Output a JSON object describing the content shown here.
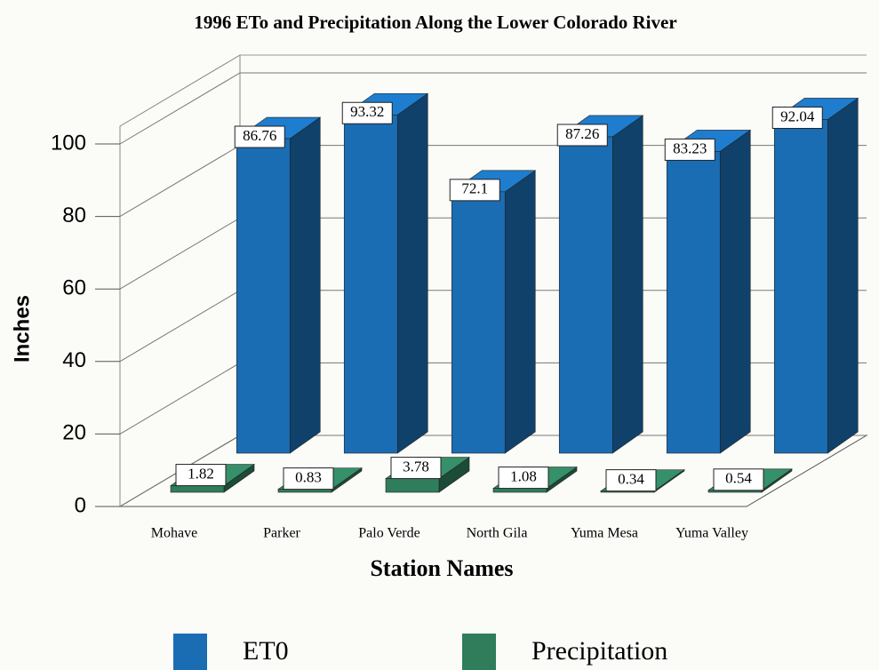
{
  "chart_data": {
    "type": "bar3d",
    "title": "1996 ETo and Precipitation Along the Lower Colorado River",
    "categories": [
      "Mohave",
      "Parker",
      "Palo Verde",
      "North Gila",
      "Yuma Mesa",
      "Yuma Valley"
    ],
    "series": [
      {
        "name": "ET0",
        "color": "#1a6db3",
        "values": [
          86.76,
          93.32,
          72.1,
          87.26,
          83.23,
          92.04
        ]
      },
      {
        "name": "Precipitation",
        "color": "#2f7d5b",
        "values": [
          1.82,
          0.83,
          3.78,
          1.08,
          0.34,
          0.54
        ]
      }
    ],
    "xlabel": "Station Names",
    "ylabel": "Inches",
    "ylim": [
      0,
      100
    ],
    "yticks": [
      0,
      20,
      40,
      60,
      80,
      100
    ],
    "grid": true,
    "legend": "bottom"
  }
}
